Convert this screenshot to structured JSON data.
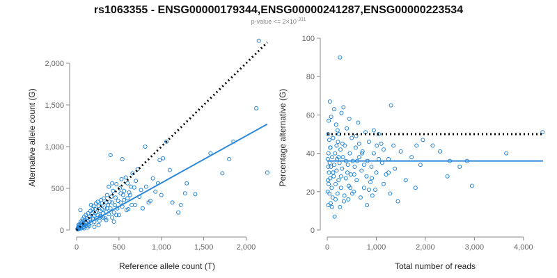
{
  "title": "rs1063355 - ENSG00000179344,ENSG00000241287,ENSG00000223534",
  "subtitle": {
    "base": "p-value <= 2×10",
    "exponent": "-311"
  },
  "colors": {
    "points": "#1f83d6",
    "fit": "#2b88d9",
    "reference": "#000000"
  },
  "chart_data": [
    {
      "type": "scatter",
      "name": "allele-counts",
      "xlabel": "Reference allele count (T)",
      "ylabel": "Alternative allele count (G)",
      "xlim": [
        0,
        2300
      ],
      "ylim": [
        0,
        2300
      ],
      "xticks": [
        0,
        500,
        1000,
        1500,
        2000
      ],
      "xtick_labels": [
        "0",
        "500",
        "1,000",
        "1,500",
        "2,000"
      ],
      "yticks": [
        0,
        500,
        1000,
        1500,
        2000
      ],
      "ytick_labels": [
        "0",
        "500",
        "1,000",
        "1,500",
        "2,000"
      ],
      "reference_line": {
        "style": "dotted",
        "points": [
          [
            0,
            0
          ],
          [
            2250,
            2250
          ]
        ]
      },
      "fit_line": {
        "style": "solid",
        "points": [
          [
            0,
            0
          ],
          [
            2250,
            1270
          ]
        ]
      },
      "points": [
        [
          2150,
          2270
        ],
        [
          2120,
          1460
        ],
        [
          2250,
          690
        ],
        [
          1850,
          1060
        ],
        [
          1720,
          680
        ],
        [
          1800,
          850
        ],
        [
          1580,
          920
        ],
        [
          1400,
          430
        ],
        [
          1280,
          440
        ],
        [
          1200,
          210
        ],
        [
          1060,
          1060
        ],
        [
          1100,
          720
        ],
        [
          1020,
          860
        ],
        [
          980,
          840
        ],
        [
          960,
          560
        ],
        [
          900,
          620
        ],
        [
          870,
          350
        ],
        [
          820,
          520
        ],
        [
          810,
          1000
        ],
        [
          780,
          260
        ],
        [
          760,
          480
        ],
        [
          720,
          730
        ],
        [
          700,
          590
        ],
        [
          680,
          510
        ],
        [
          660,
          680
        ],
        [
          650,
          300
        ],
        [
          630,
          420
        ],
        [
          620,
          450
        ],
        [
          600,
          560
        ],
        [
          600,
          380
        ],
        [
          590,
          240
        ],
        [
          580,
          630
        ],
        [
          560,
          360
        ],
        [
          550,
          420
        ],
        [
          540,
          280
        ],
        [
          530,
          610
        ],
        [
          520,
          440
        ],
        [
          510,
          500
        ],
        [
          500,
          180
        ],
        [
          490,
          350
        ],
        [
          480,
          260
        ],
        [
          470,
          550
        ],
        [
          460,
          390
        ],
        [
          450,
          300
        ],
        [
          440,
          210
        ],
        [
          430,
          470
        ],
        [
          420,
          330
        ],
        [
          420,
          150
        ],
        [
          410,
          400
        ],
        [
          400,
          260
        ],
        [
          400,
          900
        ],
        [
          390,
          340
        ],
        [
          380,
          190
        ],
        [
          370,
          300
        ],
        [
          360,
          420
        ],
        [
          350,
          220
        ],
        [
          350,
          330
        ],
        [
          340,
          140
        ],
        [
          330,
          270
        ],
        [
          320,
          380
        ],
        [
          310,
          200
        ],
        [
          300,
          250
        ],
        [
          300,
          320
        ],
        [
          290,
          160
        ],
        [
          280,
          230
        ],
        [
          270,
          110
        ],
        [
          260,
          290
        ],
        [
          250,
          180
        ],
        [
          250,
          340
        ],
        [
          240,
          140
        ],
        [
          230,
          210
        ],
        [
          220,
          250
        ],
        [
          210,
          100
        ],
        [
          200,
          170
        ],
        [
          200,
          290
        ],
        [
          190,
          140
        ],
        [
          180,
          200
        ],
        [
          170,
          90
        ],
        [
          165,
          230
        ],
        [
          160,
          130
        ],
        [
          150,
          160
        ],
        [
          140,
          70
        ],
        [
          135,
          200
        ],
        [
          130,
          110
        ],
        [
          120,
          140
        ],
        [
          115,
          50
        ],
        [
          110,
          90
        ],
        [
          100,
          120
        ],
        [
          95,
          60
        ],
        [
          90,
          160
        ],
        [
          85,
          40
        ],
        [
          80,
          80
        ],
        [
          75,
          110
        ],
        [
          70,
          30
        ],
        [
          65,
          60
        ],
        [
          60,
          90
        ],
        [
          55,
          20
        ],
        [
          50,
          50
        ],
        [
          45,
          240
        ],
        [
          40,
          30
        ],
        [
          35,
          70
        ],
        [
          30,
          15
        ],
        [
          28,
          45
        ],
        [
          25,
          25
        ],
        [
          22,
          60
        ],
        [
          20,
          10
        ],
        [
          18,
          30
        ],
        [
          15,
          20
        ],
        [
          12,
          8
        ],
        [
          10,
          15
        ],
        [
          560,
          470
        ],
        [
          470,
          180
        ],
        [
          380,
          520
        ],
        [
          290,
          360
        ],
        [
          350,
          120
        ],
        [
          230,
          320
        ],
        [
          260,
          60
        ],
        [
          190,
          250
        ],
        [
          150,
          50
        ],
        [
          310,
          150
        ],
        [
          440,
          100
        ],
        [
          520,
          330
        ],
        [
          610,
          250
        ],
        [
          690,
          300
        ],
        [
          740,
          400
        ],
        [
          850,
          330
        ],
        [
          930,
          460
        ],
        [
          1000,
          420
        ],
        [
          1130,
          330
        ],
        [
          1230,
          300
        ],
        [
          1300,
          560
        ],
        [
          540,
          850
        ],
        [
          640,
          520
        ],
        [
          420,
          560
        ],
        [
          360,
          260
        ],
        [
          280,
          170
        ],
        [
          210,
          40
        ],
        [
          170,
          300
        ],
        [
          130,
          30
        ],
        [
          110,
          180
        ],
        [
          90,
          20
        ],
        [
          70,
          130
        ],
        [
          50,
          100
        ],
        [
          30,
          40
        ]
      ]
    },
    {
      "type": "scatter",
      "name": "percentage-alternative",
      "xlabel": "Total number of reads",
      "ylabel": "Percentage alternative (G)",
      "xlim": [
        0,
        4400
      ],
      "ylim": [
        0,
        100
      ],
      "xticks": [
        0,
        1000,
        2000,
        3000,
        4000
      ],
      "xtick_labels": [
        "0",
        "1,000",
        "2,000",
        "3,000",
        "4,000"
      ],
      "yticks": [
        0,
        20,
        40,
        60,
        80,
        100
      ],
      "ytick_labels": [
        "0",
        "20",
        "40",
        "60",
        "80",
        "100"
      ],
      "reference_line": {
        "style": "dotted",
        "points": [
          [
            0,
            50
          ],
          [
            4400,
            50
          ]
        ]
      },
      "fit_line": {
        "style": "solid",
        "points": [
          [
            0,
            36
          ],
          [
            4400,
            36
          ]
        ]
      },
      "points": [
        [
          260,
          90
        ],
        [
          4390,
          51
        ],
        [
          3650,
          40
        ],
        [
          2950,
          23
        ],
        [
          2850,
          36
        ],
        [
          2700,
          33
        ],
        [
          2500,
          36
        ],
        [
          2450,
          28
        ],
        [
          2300,
          41
        ],
        [
          2150,
          44
        ],
        [
          1950,
          47
        ],
        [
          1900,
          34
        ],
        [
          1820,
          44
        ],
        [
          1800,
          22
        ],
        [
          1720,
          38
        ],
        [
          1600,
          26
        ],
        [
          1500,
          41
        ],
        [
          1440,
          15
        ],
        [
          1380,
          32
        ],
        [
          1350,
          44
        ],
        [
          1300,
          65
        ],
        [
          1280,
          19
        ],
        [
          1250,
          37
        ],
        [
          1200,
          29
        ],
        [
          1150,
          24
        ],
        [
          1120,
          35
        ],
        [
          1100,
          45
        ],
        [
          1050,
          50
        ],
        [
          1000,
          30
        ],
        [
          980,
          21
        ],
        [
          950,
          40
        ],
        [
          920,
          18
        ],
        [
          900,
          33
        ],
        [
          880,
          25
        ],
        [
          850,
          46
        ],
        [
          820,
          36
        ],
        [
          800,
          28
        ],
        [
          780,
          51
        ],
        [
          750,
          22
        ],
        [
          720,
          41
        ],
        [
          700,
          31
        ],
        [
          680,
          17
        ],
        [
          650,
          38
        ],
        [
          630,
          56
        ],
        [
          600,
          26
        ],
        [
          580,
          43
        ],
        [
          560,
          33
        ],
        [
          540,
          20
        ],
        [
          520,
          36
        ],
        [
          500,
          48
        ],
        [
          480,
          29
        ],
        [
          460,
          40
        ],
        [
          440,
          23
        ],
        [
          420,
          34
        ],
        [
          400,
          53
        ],
        [
          380,
          27
        ],
        [
          360,
          44
        ],
        [
          340,
          15
        ],
        [
          320,
          38
        ],
        [
          300,
          32
        ],
        [
          290,
          61
        ],
        [
          280,
          22
        ],
        [
          270,
          42
        ],
        [
          260,
          12
        ],
        [
          250,
          35
        ],
        [
          240,
          50
        ],
        [
          230,
          26
        ],
        [
          220,
          46
        ],
        [
          210,
          19
        ],
        [
          200,
          37
        ],
        [
          190,
          31
        ],
        [
          180,
          55
        ],
        [
          170,
          24
        ],
        [
          160,
          40
        ],
        [
          150,
          7
        ],
        [
          140,
          34
        ],
        [
          130,
          28
        ],
        [
          120,
          48
        ],
        [
          110,
          17
        ],
        [
          100,
          38
        ],
        [
          90,
          22
        ],
        [
          80,
          59
        ],
        [
          75,
          33
        ],
        [
          70,
          14
        ],
        [
          65,
          43
        ],
        [
          60,
          27
        ],
        [
          55,
          67
        ],
        [
          50,
          35
        ],
        [
          45,
          19
        ],
        [
          40,
          47
        ],
        [
          35,
          30
        ],
        [
          30,
          57
        ],
        [
          28,
          24
        ],
        [
          25,
          40
        ],
        [
          22,
          13
        ],
        [
          20,
          33
        ],
        [
          18,
          50
        ],
        [
          15,
          26
        ],
        [
          12,
          37
        ],
        [
          10,
          20
        ],
        [
          350,
          18
        ],
        [
          450,
          58
        ],
        [
          550,
          29
        ],
        [
          650,
          45
        ],
        [
          750,
          34
        ],
        [
          850,
          21
        ],
        [
          950,
          52
        ],
        [
          1050,
          37
        ],
        [
          1150,
          42
        ],
        [
          1250,
          30
        ],
        [
          330,
          64
        ],
        [
          470,
          22
        ],
        [
          190,
          44
        ],
        [
          95,
          12
        ],
        [
          140,
          63
        ],
        [
          210,
          52
        ],
        [
          310,
          45
        ],
        [
          410,
          30
        ],
        [
          510,
          19
        ],
        [
          610,
          36
        ],
        [
          710,
          40
        ],
        [
          810,
          13
        ],
        [
          910,
          27
        ],
        [
          1010,
          44
        ],
        [
          60,
          43
        ],
        [
          120,
          30
        ],
        [
          170,
          16
        ],
        [
          230,
          38
        ],
        [
          280,
          28
        ],
        [
          380,
          36
        ],
        [
          430,
          16
        ],
        [
          590,
          49
        ]
      ]
    }
  ]
}
